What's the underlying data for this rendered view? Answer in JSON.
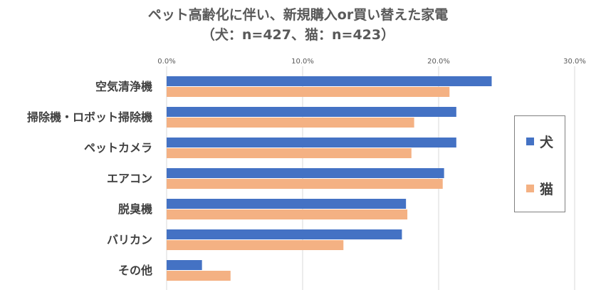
{
  "chart_data": {
    "type": "bar",
    "orientation": "horizontal",
    "title": "ペット高齢化に伴い、新規購入or買い替えた家電",
    "subtitle": "（犬：n=427、猫：n=423）",
    "categories": [
      "空気清浄機",
      "掃除機・ロボット掃除機",
      "ペットカメラ",
      "エアコン",
      "脱臭機",
      "バリカン",
      "その他"
    ],
    "series": [
      {
        "name": "犬",
        "color": "#4472C4",
        "values": [
          23.9,
          21.3,
          21.3,
          20.4,
          17.6,
          17.3,
          2.6
        ]
      },
      {
        "name": "猫",
        "color": "#F4B183",
        "values": [
          20.8,
          18.2,
          18.0,
          20.3,
          17.7,
          13.0,
          4.7
        ]
      }
    ],
    "xlim": [
      0,
      30
    ],
    "xticks": [
      "0.0%",
      "10.0%",
      "20.0%",
      "30.0%"
    ],
    "grid": true,
    "legend": "right"
  }
}
